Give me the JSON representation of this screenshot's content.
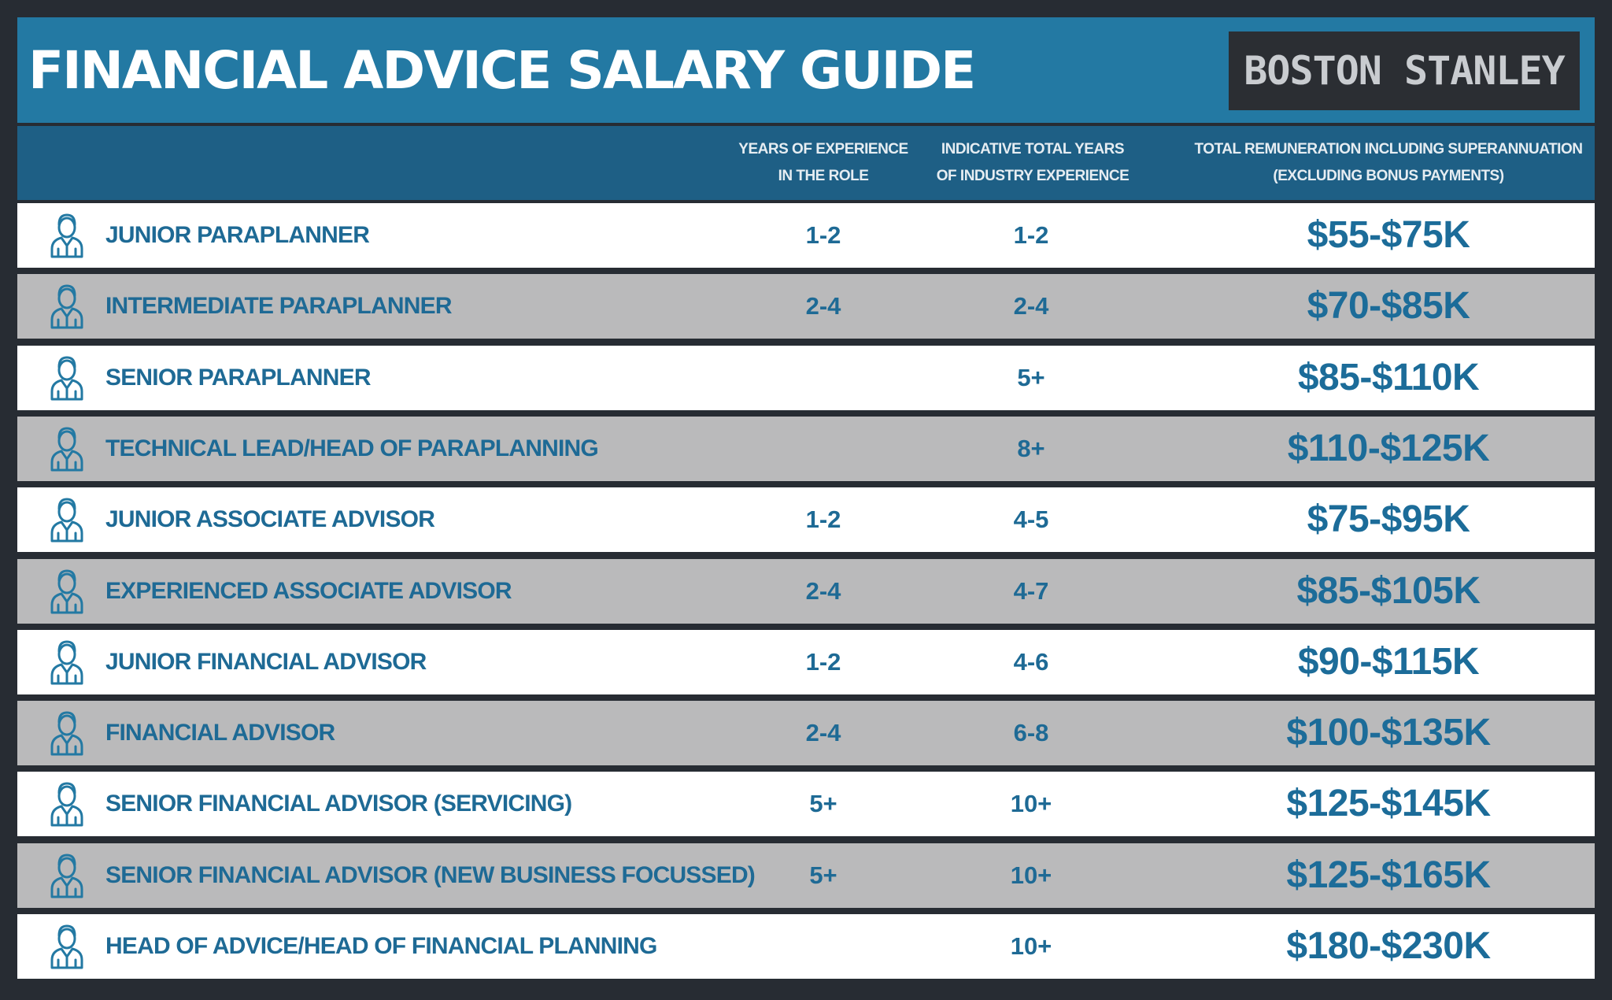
{
  "header": {
    "title": "FINANCIAL ADVICE SALARY GUIDE",
    "logo_text": "BOSTON STANLEY"
  },
  "columns": {
    "role_experience": [
      "YEARS OF EXPERIENCE",
      "IN THE ROLE"
    ],
    "industry_experience": [
      "INDICATIVE TOTAL YEARS",
      "OF INDUSTRY EXPERIENCE"
    ],
    "remuneration": [
      "TOTAL REMUNERATION INCLUDING SUPERANNUATION",
      "(EXCLUDING BONUS PAYMENTS)"
    ]
  },
  "rows": [
    {
      "role": "JUNIOR PARAPLANNER",
      "years_in_role": "1-2",
      "industry_years": "1-2",
      "remuneration": "$55-$75K"
    },
    {
      "role": "INTERMEDIATE PARAPLANNER",
      "years_in_role": "2-4",
      "industry_years": "2-4",
      "remuneration": "$70-$85K"
    },
    {
      "role": "SENIOR PARAPLANNER",
      "years_in_role": "",
      "industry_years": "5+",
      "remuneration": "$85-$110K"
    },
    {
      "role": "TECHNICAL LEAD/HEAD OF PARAPLANNING",
      "years_in_role": "",
      "industry_years": "8+",
      "remuneration": "$110-$125K"
    },
    {
      "role": "JUNIOR ASSOCIATE ADVISOR",
      "years_in_role": "1-2",
      "industry_years": "4-5",
      "remuneration": "$75-$95K"
    },
    {
      "role": "EXPERIENCED ASSOCIATE ADVISOR",
      "years_in_role": "2-4",
      "industry_years": "4-7",
      "remuneration": "$85-$105K"
    },
    {
      "role": "JUNIOR FINANCIAL ADVISOR",
      "years_in_role": "1-2",
      "industry_years": "4-6",
      "remuneration": "$90-$115K"
    },
    {
      "role": "FINANCIAL ADVISOR",
      "years_in_role": "2-4",
      "industry_years": "6-8",
      "remuneration": "$100-$135K"
    },
    {
      "role": "SENIOR FINANCIAL ADVISOR (SERVICING)",
      "years_in_role": "5+",
      "industry_years": "10+",
      "remuneration": "$125-$145K"
    },
    {
      "role": "SENIOR FINANCIAL ADVISOR (NEW BUSINESS FOCUSSED)",
      "years_in_role": "5+",
      "industry_years": "10+",
      "remuneration": "$125-$165K"
    },
    {
      "role": "HEAD OF ADVICE/HEAD OF FINANCIAL PLANNING",
      "years_in_role": "",
      "industry_years": "10+",
      "remuneration": "$180-$230K"
    }
  ],
  "style": {
    "banner_color": "#2379a3",
    "header_row_color": "#1e5f85",
    "text_blue": "#1e6a95",
    "row_white": "#ffffff",
    "row_grey": "#bababb",
    "background": "#272c33",
    "logo_background": "#2b2e33",
    "row_icon": "person-icon"
  }
}
